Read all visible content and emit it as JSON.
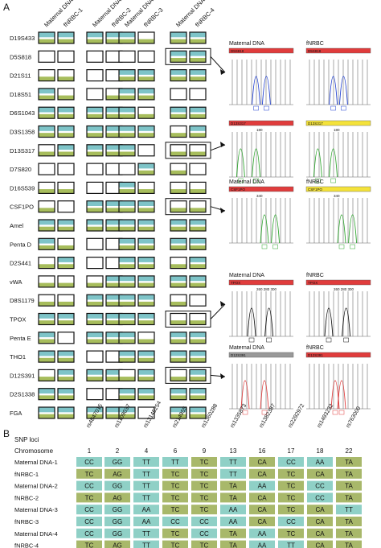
{
  "panel_a": {
    "letter": "A",
    "sample_headers": [
      "Maternal DNA-1",
      "fNRBC-1",
      "Maternal DNA-2",
      "fNRBC-2",
      "Maternal DNA-3",
      "fNRBC-3",
      "Maternal DNA-4",
      "fNRBC-4"
    ],
    "loci": [
      "D19S433",
      "D5S818",
      "D21S11",
      "D18S51",
      "D6S1043",
      "D3S1358",
      "D13S317",
      "D7S820",
      "D16S539",
      "CSF1PO",
      "Amel",
      "Penta D",
      "D2S441",
      "vWA",
      "D8S1179",
      "TPOX",
      "Penta E",
      "THO1",
      "D12S391",
      "D2S1338",
      "FGA"
    ],
    "grid_patterns": [
      [
        [
          1,
          1
        ],
        [
          0,
          0
        ],
        [
          2,
          2
        ],
        [
          1,
          2
        ],
        [
          1,
          1
        ],
        [
          1,
          1
        ],
        [
          2,
          1
        ],
        [
          0,
          0
        ],
        [
          2,
          2
        ],
        [
          2,
          0
        ],
        [
          1,
          1
        ],
        [
          1,
          2
        ],
        [
          2,
          1
        ],
        [
          2,
          2
        ],
        [
          2,
          2
        ],
        [
          1,
          1
        ],
        [
          1,
          0
        ],
        [
          1,
          1
        ],
        [
          2,
          1
        ],
        [
          1,
          1
        ],
        [
          1,
          1
        ]
      ],
      [
        [
          1,
          1
        ],
        [
          0,
          0
        ],
        [
          0,
          0
        ],
        [
          0,
          2
        ],
        [
          1,
          1
        ],
        [
          1,
          1
        ],
        [
          1,
          1
        ],
        [
          0,
          0
        ],
        [
          0,
          0
        ],
        [
          1,
          1
        ],
        [
          1,
          1
        ],
        [
          0,
          0
        ],
        [
          0,
          0
        ],
        [
          2,
          1
        ],
        [
          1,
          1
        ],
        [
          1,
          1
        ],
        [
          1,
          1
        ],
        [
          0,
          0
        ],
        [
          1,
          1
        ],
        [
          0,
          0
        ],
        [
          1,
          1
        ]
      ],
      [
        [
          1,
          2
        ],
        [
          0,
          0
        ],
        [
          1,
          1
        ],
        [
          1,
          1
        ],
        [
          1,
          2
        ],
        [
          1,
          1
        ],
        [
          1,
          0
        ],
        [
          0,
          1
        ],
        [
          1,
          2
        ],
        [
          1,
          1
        ],
        [
          1,
          1
        ],
        [
          1,
          1
        ],
        [
          1,
          1
        ],
        [
          1,
          1
        ],
        [
          1,
          1
        ],
        [
          1,
          1
        ],
        [
          1,
          2
        ],
        [
          1,
          1
        ],
        [
          2,
          1
        ],
        [
          1,
          1
        ],
        [
          1,
          0
        ]
      ],
      [
        [
          1,
          1
        ],
        [
          1,
          1
        ],
        [
          1,
          1
        ],
        [
          0,
          0
        ],
        [
          1,
          1
        ],
        [
          2,
          1
        ],
        [
          2,
          2
        ],
        [
          2,
          0
        ],
        [
          2,
          2
        ],
        [
          2,
          2
        ],
        [
          1,
          1
        ],
        [
          1,
          1
        ],
        [
          2,
          1
        ],
        [
          1,
          1
        ],
        [
          2,
          0
        ],
        [
          2,
          2
        ],
        [
          1,
          1
        ],
        [
          1,
          1
        ],
        [
          2,
          1
        ],
        [
          1,
          1
        ],
        [
          1,
          1
        ]
      ]
    ],
    "legend_colors": {
      "top": "#7ec4c8",
      "bottom": "#a7bd5c",
      "frame": "#111111"
    },
    "electropherograms": [
      {
        "locus_row": 1,
        "left_title": "Maternal DNA",
        "right_title": "fNRBC",
        "bar_color": "#e03c3c",
        "peak_color": "#1f3fd0",
        "left_peaks": [
          0.42,
          0.58
        ],
        "right_peaks": [
          0.42,
          0.58
        ],
        "left_tag": "D5S818",
        "right_tag": "D5S818",
        "scale": ""
      },
      {
        "locus_row": 6,
        "left_title": "",
        "right_title": "",
        "bar_color_left": "#e03c3c",
        "bar_color_right": "#f4e23a",
        "peak_color": "#2fa62f",
        "left_peaks": [
          0.18,
          0.42
        ],
        "right_peaks": [
          0.18,
          0.42
        ],
        "left_tag": "D13S317",
        "right_tag": "D13S317",
        "scale": "180"
      },
      {
        "locus_row": 9,
        "left_title": "Maternal DNA",
        "right_title": "fNRBC",
        "bar_color_left": "#e03c3c",
        "bar_color_right": "#f4e23a",
        "peak_color": "#2fa62f",
        "left_peaks": [
          0.55,
          0.72
        ],
        "right_peaks": [
          0.55,
          0.72
        ],
        "left_tag": "CSF1PO",
        "right_tag": "CSF1PO",
        "scale": "340"
      },
      {
        "locus_row": 15,
        "left_title": "Maternal DNA",
        "right_title": "fNRBC",
        "bar_color": "#e03c3c",
        "peak_color": "#111111",
        "left_peaks": [
          0.35,
          0.62
        ],
        "right_peaks": [
          0.35,
          0.62
        ],
        "left_tag": "TPOX",
        "right_tag": "TPOX",
        "scale": "260  280  300"
      },
      {
        "locus_row": 18,
        "left_title": "Maternal DNA",
        "right_title": "fNRBC",
        "bar_color_left": "#999999",
        "bar_color_right": "#e03c3c",
        "peak_color": "#e03c3c",
        "left_peaks": [
          0.25,
          0.55
        ],
        "right_peaks": [
          0.45,
          0.55
        ],
        "left_tag": "D12S391",
        "right_tag": "D12S391",
        "scale": ""
      }
    ]
  },
  "panel_b": {
    "letter": "B",
    "snp_loci_label": "SNP loci",
    "chromosome_label": "Chromosome",
    "snps": [
      "rs4847015",
      "rs1109037",
      "rs13145254",
      "rs214955",
      "rs1360288",
      "rs1335873",
      "rs1382387",
      "rs2292972",
      "rs1493232",
      "rs763000"
    ],
    "chromosomes": [
      "1",
      "2",
      "4",
      "6",
      "9",
      "13",
      "16",
      "17",
      "18",
      "22"
    ],
    "rows": [
      {
        "name": "Maternal DNA-1",
        "genotypes": [
          "CC",
          "GG",
          "TT",
          "TT",
          "TC",
          "TT",
          "CA",
          "CC",
          "AA",
          "TA"
        ]
      },
      {
        "name": "fNRBC-1",
        "genotypes": [
          "TC",
          "AG",
          "TT",
          "TC",
          "TC",
          "TT",
          "CA",
          "TC",
          "CA",
          "TA"
        ]
      },
      {
        "name": "Maternal DNA-2",
        "genotypes": [
          "CC",
          "GG",
          "TT",
          "TC",
          "TC",
          "TA",
          "AA",
          "TC",
          "CC",
          "TA"
        ]
      },
      {
        "name": "fNRBC-2",
        "genotypes": [
          "TC",
          "AG",
          "TT",
          "TC",
          "TC",
          "TA",
          "CA",
          "TC",
          "CC",
          "TA"
        ]
      },
      {
        "name": "Maternal DNA-3",
        "genotypes": [
          "CC",
          "GG",
          "AA",
          "TC",
          "TC",
          "AA",
          "CA",
          "TC",
          "CA",
          "TT"
        ]
      },
      {
        "name": "fNRBC-3",
        "genotypes": [
          "CC",
          "GG",
          "AA",
          "CC",
          "CC",
          "AA",
          "CA",
          "CC",
          "CA",
          "TA"
        ]
      },
      {
        "name": "Maternal DNA-4",
        "genotypes": [
          "CC",
          "GG",
          "TT",
          "TC",
          "CC",
          "TA",
          "AA",
          "TC",
          "CA",
          "TA"
        ]
      },
      {
        "name": "fNRBC-4",
        "genotypes": [
          "TC",
          "AG",
          "TT",
          "TC",
          "TC",
          "TA",
          "AA",
          "TT",
          "CA",
          "TA"
        ]
      }
    ],
    "colors": {
      "homozygous": "#8fd0c6",
      "heterozygous": "#a8b86a"
    }
  }
}
